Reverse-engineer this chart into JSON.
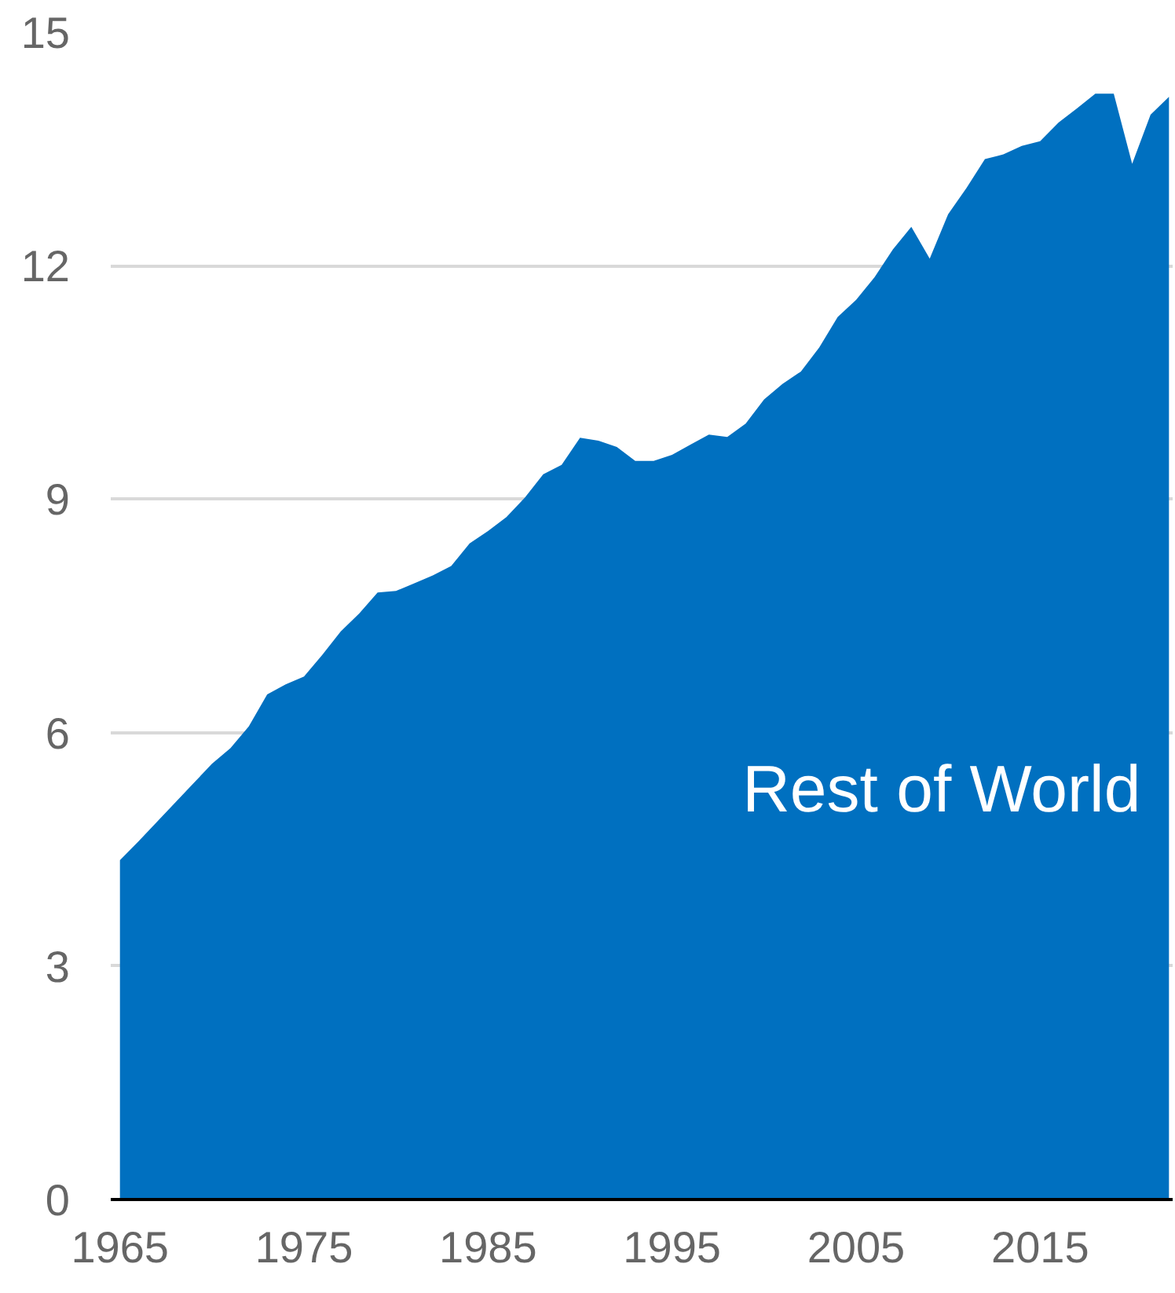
{
  "chart_data": {
    "type": "area",
    "x": [
      1965,
      1966,
      1967,
      1968,
      1969,
      1970,
      1971,
      1972,
      1973,
      1974,
      1975,
      1976,
      1977,
      1978,
      1979,
      1980,
      1981,
      1982,
      1983,
      1984,
      1985,
      1986,
      1987,
      1988,
      1989,
      1990,
      1991,
      1992,
      1993,
      1994,
      1995,
      1996,
      1997,
      1998,
      1999,
      2000,
      2001,
      2002,
      2003,
      2004,
      2005,
      2006,
      2007,
      2008,
      2009,
      2010,
      2011,
      2012,
      2013,
      2014,
      2015,
      2016,
      2017,
      2018,
      2019,
      2020,
      2021,
      2022
    ],
    "series": [
      {
        "name": "Rest of World",
        "color": "#0070c0",
        "values": [
          4.36,
          4.6,
          4.85,
          5.1,
          5.35,
          5.6,
          5.8,
          6.08,
          6.49,
          6.62,
          6.72,
          7.0,
          7.3,
          7.53,
          7.8,
          7.82,
          7.92,
          8.02,
          8.14,
          8.43,
          8.59,
          8.77,
          9.02,
          9.32,
          9.44,
          9.79,
          9.75,
          9.67,
          9.49,
          9.49,
          9.57,
          9.7,
          9.83,
          9.8,
          9.97,
          10.28,
          10.48,
          10.64,
          10.95,
          11.34,
          11.56,
          11.85,
          12.21,
          12.5,
          12.09,
          12.66,
          13.0,
          13.37,
          13.43,
          13.54,
          13.6,
          13.84,
          14.02,
          14.21,
          14.21,
          13.31,
          13.94,
          14.17
        ]
      }
    ],
    "xlim": [
      1964.5,
      2022.2
    ],
    "xticks": [
      1965,
      1975,
      1985,
      1995,
      2005,
      2015
    ],
    "ylim": [
      0,
      15
    ],
    "yticks": [
      0,
      3,
      6,
      9,
      12,
      15
    ],
    "grid": "y"
  }
}
